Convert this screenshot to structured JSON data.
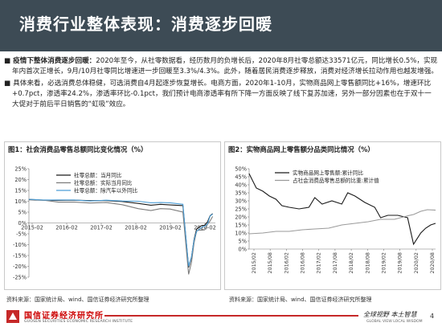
{
  "header": {
    "title": "消费行业整体表现：消费逐步回暖"
  },
  "body": {
    "para1_head": "疫情下整体消费逐步回暖：",
    "para1_text": "2020年至今，从社零数据看，经历数月的负增长后，2020年8月社零总额达33571亿元，同比增长0.5%，实现年内首次正增长，9月/10月社零同比增速进一步回暖至3.3%/4.3%。此外，随着居民消费逐步释放，消费对经济增长拉动作用也越发增强。",
    "para2_text": "具体来看，必选消费总体稳健，可选消费自4月起逐步恢复增长。电商方面，2020年1-10月，实物商品网上零售额同比+16%，增速环比+0.7pct，渗透率24.2%，渗透率环比-0.1pct，我们预计电商渗透率有所下降一方面反映了线下复苏加速，另外一部分因素也在于双十一大促对于前后平日销售的“虹吸”效应。"
  },
  "chart1": {
    "title": "图1：社会消费品零售总额同比变化情况（%）",
    "source": "资料来源：国家统计局、wind、国信证券经济研究所整理"
  },
  "chart2": {
    "title": "图2：实物商品网上零售额分品类同比情况（%）",
    "source": "资料来源：国家统计局、wind、国信证券经济研究所整理"
  },
  "footer": {
    "logo": "国信证券经济研究所",
    "logo_sub": "GUOSEN SECURITIES ECONOMIC RESEARCH INSTITUTE",
    "slogan": "全球视野 本土智慧",
    "slogan_sub": "GLOBAL VIEW   LOCAL WISDOM",
    "page": "4"
  },
  "colors": {
    "title_bg": "#3d4b55",
    "accent_red": "#c62828"
  },
  "chart_data": [
    {
      "type": "line",
      "title": "图1：社会消费品零售总额同比变化情况（%）",
      "x_tick_labels": [
        "2015-02",
        "2016-02",
        "2017-02",
        "2018-02",
        "2019-02",
        "2020-02"
      ],
      "x_start": 2015.0833,
      "x_end": 2020.9167,
      "ylim": [
        -25,
        25
      ],
      "y_ticks": [
        25,
        20,
        15,
        10,
        5,
        0,
        -5,
        -10,
        -15,
        -20,
        -25
      ],
      "y_tick_labels": [
        "25%",
        "20%",
        "15%",
        "10%",
        "5%",
        "0%",
        "-5%",
        "-10%",
        "-15%",
        "-20%",
        "-25%"
      ],
      "legend_position": "top-left",
      "series": [
        {
          "name": "社零总额：当月同比",
          "color": "#1a1a1a",
          "x": [
            2015.08,
            2015.5,
            2016.0,
            2016.5,
            2017.0,
            2017.5,
            2018.0,
            2018.5,
            2018.9,
            2019.2,
            2019.5,
            2019.9,
            2020.08,
            2020.17,
            2020.25,
            2020.33,
            2020.42,
            2020.5,
            2020.58,
            2020.67,
            2020.75,
            2020.83
          ],
          "y": [
            10.7,
            10.5,
            10.4,
            10.5,
            10.3,
            10.3,
            9.9,
            9.0,
            8.2,
            8.6,
            8.3,
            8.0,
            -20.5,
            -15.8,
            -7.5,
            -2.8,
            -1.8,
            -1.1,
            -1.1,
            0.5,
            3.3,
            4.3
          ]
        },
        {
          "name": "社零总额：实际当月同比",
          "color": "#7c7c7c",
          "x": [
            2015.08,
            2015.5,
            2016.0,
            2016.5,
            2017.0,
            2017.5,
            2018.0,
            2018.5,
            2018.9,
            2019.2,
            2019.5,
            2019.9,
            2020.08,
            2020.17,
            2020.25,
            2020.33,
            2020.42,
            2020.5,
            2020.58,
            2020.67,
            2020.75,
            2020.83
          ],
          "y": [
            10.9,
            10.6,
            9.6,
            9.6,
            9.2,
            9.4,
            8.4,
            6.6,
            5.7,
            6.6,
            6.4,
            5.0,
            -23.7,
            -18.1,
            -9.1,
            -3.7,
            -3.3,
            -3.3,
            -3.2,
            -0.6,
            0.9,
            3.0
          ]
        },
        {
          "name": "社零总额：除汽车以外同比",
          "color": "#4d9ed6",
          "x": [
            2015.08,
            2015.5,
            2016.0,
            2016.5,
            2017.0,
            2017.5,
            2018.0,
            2018.5,
            2018.9,
            2019.2,
            2019.5,
            2019.9,
            2020.08,
            2020.17,
            2020.25,
            2020.33,
            2020.42,
            2020.5,
            2020.58,
            2020.67,
            2020.75,
            2020.83
          ],
          "y": [
            10.9,
            10.6,
            10.6,
            10.6,
            10.1,
            10.5,
            10.1,
            10.0,
            9.3,
            9.4,
            9.3,
            8.6,
            -20.0,
            -15.6,
            -7.8,
            -3.8,
            -2.9,
            -1.9,
            -1.6,
            -0.5,
            3.2,
            4.1
          ]
        }
      ]
    },
    {
      "type": "line",
      "title": "图2：实物商品网上零售额分品类同比情况（%）",
      "x_tick_labels": [
        "2015/02",
        "2015/08",
        "2016/02",
        "2016/08",
        "2017/02",
        "2017/08",
        "2018/02",
        "2018/08",
        "2019/02",
        "2019/08",
        "2020/02",
        "2020/08"
      ],
      "x_start": 2015.0833,
      "x_end": 2020.75,
      "ylim": [
        0,
        50
      ],
      "y_ticks": [
        0,
        5,
        10,
        15,
        20,
        25,
        30,
        35,
        40,
        45,
        50
      ],
      "y_tick_labels": [
        "0%",
        "5%",
        "10%",
        "15%",
        "20%",
        "25%",
        "30%",
        "35%",
        "40%",
        "45%",
        "50%"
      ],
      "legend_position": "top-right",
      "series": [
        {
          "name": "实物商品网上零售额:累计同比",
          "color": "#1a1a1a",
          "x": [
            2015.08,
            2015.3,
            2015.5,
            2015.7,
            2015.9,
            2016.08,
            2016.3,
            2016.6,
            2016.9,
            2017.08,
            2017.3,
            2017.6,
            2017.9,
            2018.08,
            2018.3,
            2018.6,
            2018.9,
            2019.08,
            2019.3,
            2019.6,
            2019.9,
            2020.08,
            2020.17,
            2020.3,
            2020.45,
            2020.6,
            2020.75
          ],
          "y": [
            47,
            38,
            36,
            33,
            31,
            27,
            26,
            25,
            26,
            32,
            28,
            30,
            28,
            35,
            33,
            29,
            26,
            19.5,
            21,
            21,
            19.5,
            3,
            5.9,
            10,
            13,
            15,
            16
          ]
        },
        {
          "name": "占社会消费品零售总额的比重:累计值",
          "color": "#9a9a9a",
          "x": [
            2015.08,
            2015.5,
            2015.9,
            2016.3,
            2016.7,
            2017.08,
            2017.5,
            2017.9,
            2018.3,
            2018.7,
            2019.08,
            2019.5,
            2019.9,
            2020.08,
            2020.3,
            2020.5,
            2020.75
          ],
          "y": [
            9.5,
            10,
            11,
            11,
            12,
            12.5,
            13,
            15,
            16,
            17,
            18.5,
            18.5,
            20.7,
            21.5,
            23.5,
            24.5,
            24.2
          ]
        }
      ]
    }
  ]
}
